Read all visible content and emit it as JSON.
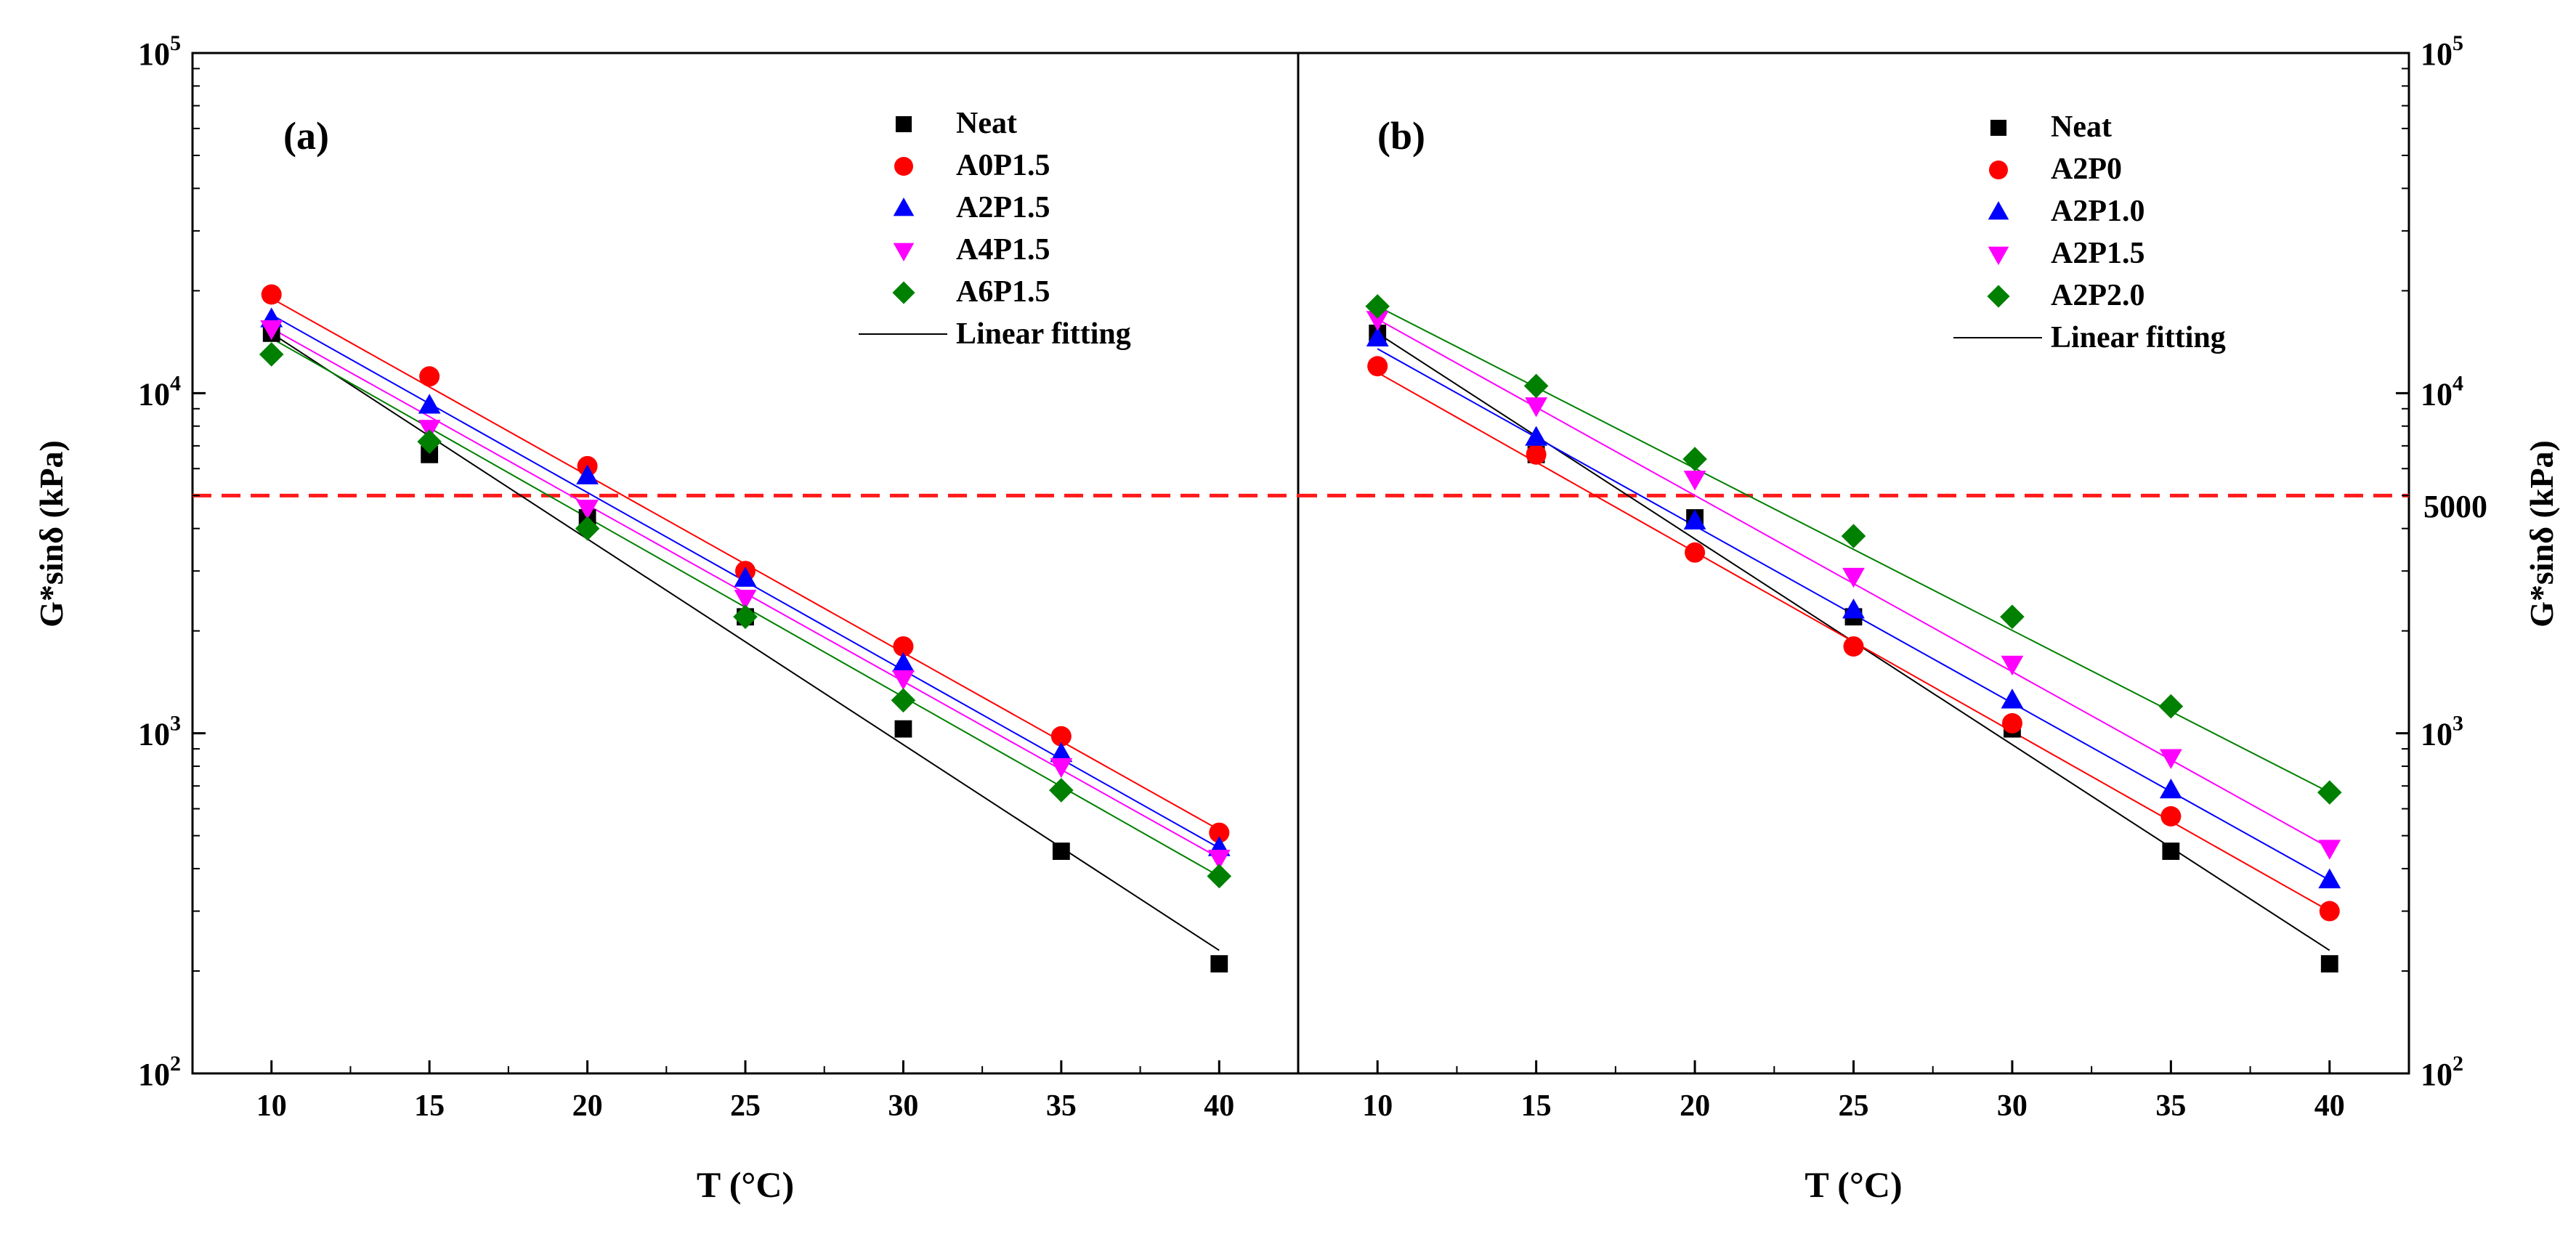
{
  "figure": {
    "x_axis_label": "T (°C)",
    "y_axis_label": "G*sinδ (kPa)",
    "threshold": {
      "value": 5000,
      "label": "5000",
      "color": "#ff1a1a",
      "style": "dashed"
    }
  },
  "markers": {
    "Neat": {
      "shape": "square",
      "color": "#000000"
    },
    "A0P1.5": {
      "shape": "circle",
      "color": "#ff0000"
    },
    "A2P0": {
      "shape": "circle",
      "color": "#ff0000"
    },
    "A2P1.5_a": {
      "shape": "triangle-up",
      "color": "#0000ff"
    },
    "A2P1.0": {
      "shape": "triangle-up",
      "color": "#0000ff"
    },
    "A4P1.5": {
      "shape": "triangle-down",
      "color": "#ff00ff"
    },
    "A2P1.5_b": {
      "shape": "triangle-down",
      "color": "#ff00ff"
    },
    "A6P1.5": {
      "shape": "diamond",
      "color": "#008000"
    },
    "A2P2.0": {
      "shape": "diamond",
      "color": "#008000"
    }
  },
  "chart_data": [
    {
      "type": "scatter",
      "panel_label": "(a)",
      "xlabel": "T (°C)",
      "ylabel": "G*sinδ (kPa)",
      "yscale": "log",
      "xlim": [
        7.5,
        42.5
      ],
      "ylim": [
        100,
        100000
      ],
      "x_ticks": [
        10,
        15,
        20,
        25,
        30,
        35,
        40
      ],
      "y_ticks": [
        {
          "value": 100,
          "base": "10",
          "exp": "2"
        },
        {
          "value": 1000,
          "base": "10",
          "exp": "3"
        },
        {
          "value": 10000,
          "base": "10",
          "exp": "4"
        },
        {
          "value": 100000,
          "base": "10",
          "exp": "5"
        }
      ],
      "legend_position": "top-right",
      "fit_label": "Linear fitting",
      "x": [
        10,
        15,
        20,
        25,
        30,
        35,
        40
      ],
      "series": [
        {
          "name": "Neat",
          "marker": "square",
          "color": "#000000",
          "line_color": "#000000",
          "values": [
            15000,
            6600,
            4300,
            2200,
            1030,
            450,
            210
          ],
          "fit": [
            15000,
            230
          ]
        },
        {
          "name": "A0P1.5",
          "marker": "circle",
          "color": "#ff0000",
          "line_color": "#ff0000",
          "values": [
            19500,
            11200,
            6100,
            3000,
            1800,
            980,
            510
          ],
          "fit": [
            19000,
            520
          ]
        },
        {
          "name": "A2P1.5",
          "marker": "triangle-up",
          "color": "#0000ff",
          "line_color": "#0000ff",
          "values": [
            16500,
            9200,
            5700,
            2850,
            1600,
            870,
            460
          ],
          "fit": [
            17000,
            460
          ]
        },
        {
          "name": "A4P1.5",
          "marker": "triangle-down",
          "color": "#ff00ff",
          "line_color": "#ff00ff",
          "values": [
            15500,
            7900,
            4600,
            2500,
            1450,
            800,
            430
          ],
          "fit": [
            15500,
            430
          ]
        },
        {
          "name": "A6P1.5",
          "marker": "diamond",
          "color": "#008000",
          "line_color": "#008000",
          "values": [
            13000,
            7200,
            4000,
            2200,
            1250,
            680,
            380
          ],
          "fit": [
            14500,
            380
          ]
        }
      ]
    },
    {
      "type": "scatter",
      "panel_label": "(b)",
      "xlabel": "T (°C)",
      "ylabel": "G*sinδ (kPa)",
      "yscale": "log",
      "xlim": [
        7.5,
        42.5
      ],
      "ylim": [
        100,
        100000
      ],
      "x_ticks": [
        10,
        15,
        20,
        25,
        30,
        35,
        40
      ],
      "y_ticks": [
        {
          "value": 100,
          "base": "10",
          "exp": "2"
        },
        {
          "value": 1000,
          "base": "10",
          "exp": "3"
        },
        {
          "value": 10000,
          "base": "10",
          "exp": "4"
        },
        {
          "value": 100000,
          "base": "10",
          "exp": "5"
        }
      ],
      "legend_position": "top-right",
      "fit_label": "Linear fitting",
      "x": [
        10,
        15,
        20,
        25,
        30,
        35,
        40
      ],
      "series": [
        {
          "name": "Neat",
          "marker": "square",
          "color": "#000000",
          "line_color": "#000000",
          "values": [
            15000,
            6600,
            4300,
            2200,
            1030,
            450,
            210
          ],
          "fit": [
            15000,
            230
          ]
        },
        {
          "name": "A2P0",
          "marker": "circle",
          "color": "#ff0000",
          "line_color": "#ff0000",
          "values": [
            12000,
            6600,
            3400,
            1800,
            1070,
            570,
            300
          ],
          "fit": [
            11500,
            300
          ]
        },
        {
          "name": "A2P1.0",
          "marker": "triangle-up",
          "color": "#0000ff",
          "line_color": "#0000ff",
          "values": [
            14500,
            7400,
            4200,
            2300,
            1250,
            680,
            370
          ],
          "fit": [
            13500,
            370
          ]
        },
        {
          "name": "A2P1.5",
          "marker": "triangle-down",
          "color": "#ff00ff",
          "line_color": "#ff00ff",
          "values": [
            16500,
            9200,
            5600,
            2900,
            1600,
            850,
            460
          ],
          "fit": [
            16500,
            460
          ]
        },
        {
          "name": "A2P2.0",
          "marker": "diamond",
          "color": "#008000",
          "line_color": "#008000",
          "values": [
            18000,
            10500,
            6400,
            3800,
            2200,
            1200,
            670
          ],
          "fit": [
            18000,
            670
          ]
        }
      ]
    }
  ]
}
